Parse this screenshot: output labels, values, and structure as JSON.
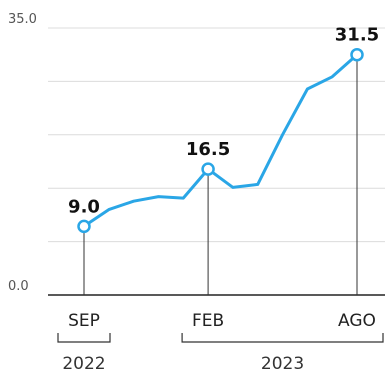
{
  "chart_data": {
    "type": "line",
    "title": "",
    "xlabel": "",
    "ylabel": "",
    "ylim": [
      0,
      35.0
    ],
    "y_tick_labels": [
      "35.0",
      "0.0"
    ],
    "grid": true,
    "line_color": "#2aa6e6",
    "series": [
      {
        "values": [
          9.0,
          11.2,
          12.3,
          12.9,
          12.7,
          16.5,
          14.1,
          14.5,
          21.0,
          27.0,
          28.6,
          31.5
        ]
      }
    ],
    "x_indices": [
      0,
      1,
      2,
      3,
      4,
      5,
      6,
      7,
      8,
      9,
      10,
      11
    ],
    "data_labels": [
      {
        "index": 0,
        "text": "9.0"
      },
      {
        "index": 5,
        "text": "16.5"
      },
      {
        "index": 11,
        "text": "31.5"
      }
    ],
    "month_labels": [
      {
        "index": 0,
        "text": "SEP"
      },
      {
        "index": 5,
        "text": "FEB"
      },
      {
        "index": 11,
        "text": "AGO"
      }
    ],
    "year_groups": [
      {
        "from": 0,
        "to": 0,
        "text": "2022"
      },
      {
        "from": 5,
        "to": 11,
        "text": "2023"
      }
    ]
  }
}
